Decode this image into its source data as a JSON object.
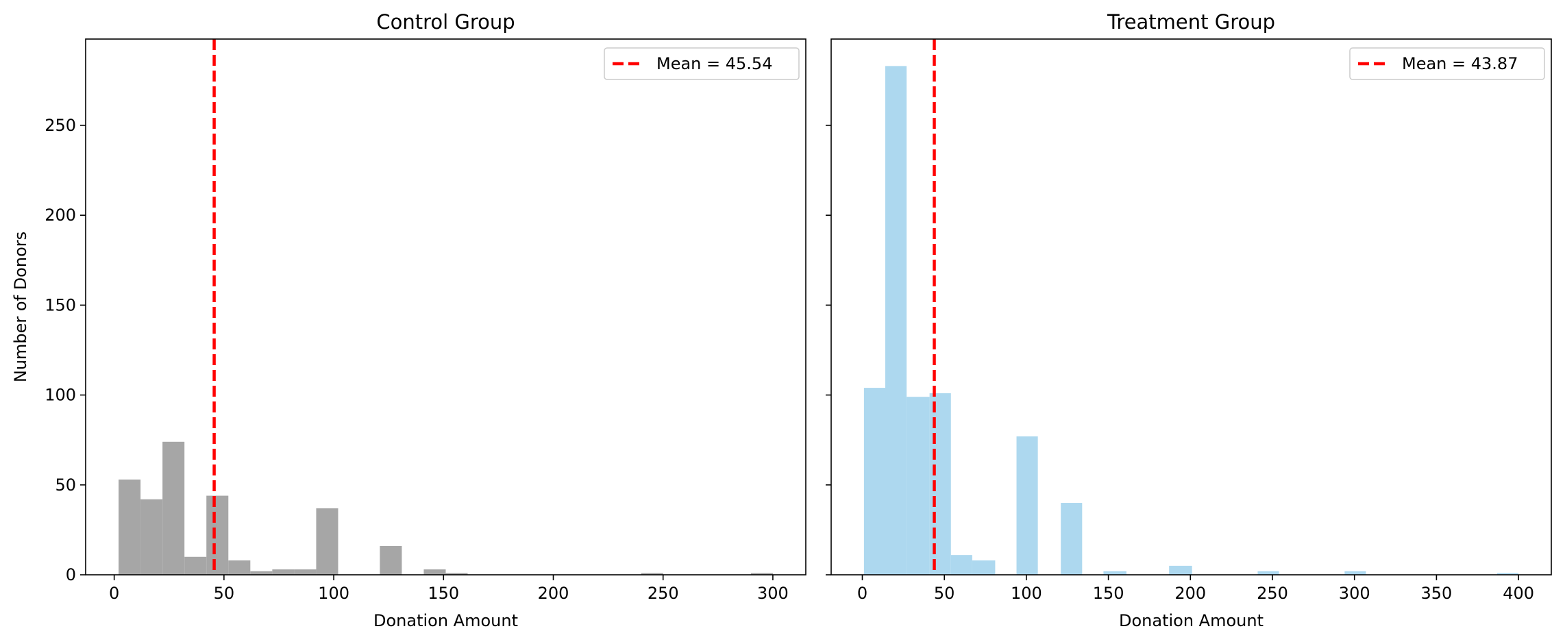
{
  "chart_data": [
    {
      "type": "bar",
      "title": "Control Group",
      "xlabel": "Donation Amount",
      "ylabel": "Number of Donors",
      "xlim": [
        -13,
        315
      ],
      "ylim": [
        0,
        298
      ],
      "xticks": [
        0,
        50,
        100,
        150,
        200,
        250,
        300
      ],
      "yticks": [
        0,
        50,
        100,
        150,
        200,
        250
      ],
      "bar_color": "#a6a6a6",
      "bins": [
        {
          "x0": 2,
          "x1": 12,
          "count": 53
        },
        {
          "x0": 12,
          "x1": 22,
          "count": 42
        },
        {
          "x0": 22,
          "x1": 32,
          "count": 74
        },
        {
          "x0": 32,
          "x1": 42,
          "count": 10
        },
        {
          "x0": 42,
          "x1": 52,
          "count": 44
        },
        {
          "x0": 52,
          "x1": 62,
          "count": 8
        },
        {
          "x0": 62,
          "x1": 72,
          "count": 2
        },
        {
          "x0": 72,
          "x1": 82,
          "count": 3
        },
        {
          "x0": 82,
          "x1": 92,
          "count": 3
        },
        {
          "x0": 92,
          "x1": 102,
          "count": 37
        },
        {
          "x0": 121,
          "x1": 131,
          "count": 16
        },
        {
          "x0": 141,
          "x1": 151,
          "count": 3
        },
        {
          "x0": 151,
          "x1": 161,
          "count": 1
        },
        {
          "x0": 240,
          "x1": 250,
          "count": 1
        },
        {
          "x0": 290,
          "x1": 300,
          "count": 1
        }
      ],
      "mean_line": {
        "value": 45.54,
        "label": "Mean = 45.54",
        "color": "#ff0000"
      },
      "legend_position": "top-right"
    },
    {
      "type": "bar",
      "title": "Treatment Group",
      "xlabel": "Donation Amount",
      "ylabel": "",
      "xlim": [
        -19,
        420
      ],
      "ylim": [
        0,
        298
      ],
      "xticks": [
        0,
        50,
        100,
        150,
        200,
        250,
        300,
        350,
        400
      ],
      "yticks": [
        0,
        50,
        100,
        150,
        200,
        250
      ],
      "bar_color": "#add8ef",
      "bins": [
        {
          "x0": 1,
          "x1": 14,
          "count": 104
        },
        {
          "x0": 14,
          "x1": 27,
          "count": 283
        },
        {
          "x0": 27,
          "x1": 41,
          "count": 99
        },
        {
          "x0": 41,
          "x1": 54,
          "count": 101
        },
        {
          "x0": 54,
          "x1": 67,
          "count": 11
        },
        {
          "x0": 67,
          "x1": 81,
          "count": 8
        },
        {
          "x0": 94,
          "x1": 107,
          "count": 77
        },
        {
          "x0": 121,
          "x1": 134,
          "count": 40
        },
        {
          "x0": 147,
          "x1": 161,
          "count": 2
        },
        {
          "x0": 187,
          "x1": 201,
          "count": 5
        },
        {
          "x0": 241,
          "x1": 254,
          "count": 2
        },
        {
          "x0": 294,
          "x1": 307,
          "count": 2
        },
        {
          "x0": 387,
          "x1": 400,
          "count": 1
        }
      ],
      "mean_line": {
        "value": 43.87,
        "label": "Mean = 43.87",
        "color": "#ff0000"
      },
      "legend_position": "top-right"
    }
  ]
}
